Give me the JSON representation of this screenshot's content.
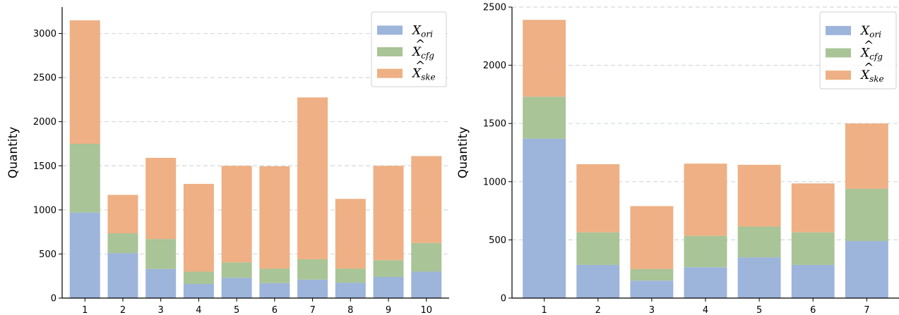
{
  "chart_data": [
    {
      "type": "bar",
      "stacked": true,
      "categories": [
        "1",
        "2",
        "3",
        "4",
        "5",
        "6",
        "7",
        "8",
        "9",
        "10"
      ],
      "series": [
        {
          "name": "X_ori",
          "color": "#9db4db",
          "values": [
            970,
            510,
            330,
            160,
            230,
            170,
            210,
            175,
            240,
            300
          ]
        },
        {
          "name": "X̂_cfg",
          "color": "#a9c496",
          "values": [
            780,
            225,
            340,
            140,
            175,
            165,
            230,
            160,
            190,
            325
          ]
        },
        {
          "name": "X̂_ske",
          "color": "#eeb084",
          "values": [
            1400,
            435,
            920,
            995,
            1095,
            1160,
            1835,
            790,
            1070,
            985
          ]
        }
      ],
      "legend": [
        {
          "symbol": "X",
          "hat": false,
          "sub": "ori"
        },
        {
          "symbol": "X",
          "hat": true,
          "sub": "cfg"
        },
        {
          "symbol": "X",
          "hat": true,
          "sub": "ske"
        }
      ],
      "ylabel": "Quantity",
      "xlabel": "",
      "ylim": [
        0,
        3300
      ],
      "yticks": [
        0,
        500,
        1000,
        1500,
        2000,
        2500,
        3000
      ],
      "grid": "y-dashed",
      "legend_position": "top-right"
    },
    {
      "type": "bar",
      "stacked": true,
      "categories": [
        "1",
        "2",
        "3",
        "4",
        "5",
        "6",
        "7"
      ],
      "series": [
        {
          "name": "X_ori",
          "color": "#9db4db",
          "values": [
            1370,
            285,
            150,
            265,
            350,
            285,
            490
          ]
        },
        {
          "name": "X̂_cfg",
          "color": "#a9c496",
          "values": [
            360,
            280,
            100,
            270,
            265,
            280,
            450
          ]
        },
        {
          "name": "X̂_ske",
          "color": "#eeb084",
          "values": [
            660,
            585,
            540,
            620,
            530,
            420,
            560
          ]
        }
      ],
      "legend": [
        {
          "symbol": "X",
          "hat": false,
          "sub": "ori"
        },
        {
          "symbol": "X",
          "hat": true,
          "sub": "cfg"
        },
        {
          "symbol": "X",
          "hat": true,
          "sub": "ske"
        }
      ],
      "ylabel": "Quantity",
      "xlabel": "",
      "ylim": [
        0,
        2500
      ],
      "yticks": [
        0,
        500,
        1000,
        1500,
        2000,
        2500
      ],
      "grid": "y-dashed",
      "legend_position": "top-right"
    }
  ]
}
